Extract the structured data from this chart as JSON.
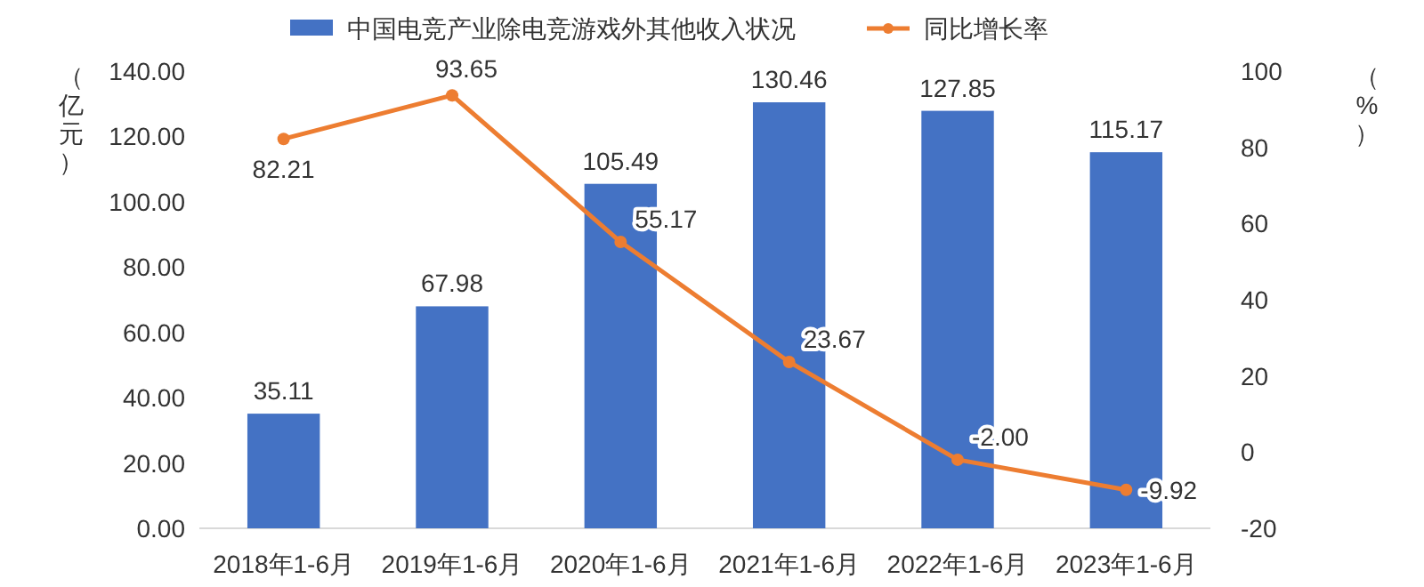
{
  "chart_data": {
    "type": "bar",
    "ylabel": "（亿元）",
    "y2label": "（%）",
    "categories": [
      "2018年1-6月",
      "2019年1-6月",
      "2020年1-6月",
      "2021年1-6月",
      "2022年1-6月",
      "2023年1-6月"
    ],
    "series": [
      {
        "name": "中国电竞产业除电竞游戏外其他收入状况",
        "color": "#4472c4",
        "values": [
          35.11,
          67.98,
          105.49,
          130.46,
          127.85,
          115.17
        ],
        "value_labels": [
          "35.11",
          "67.98",
          "105.49",
          "130.46",
          "127.85",
          "115.17"
        ]
      },
      {
        "name": "同比增长率",
        "type": "line",
        "axis": "y2",
        "color": "#ed7d31",
        "marker": "circle",
        "values": [
          82.21,
          93.65,
          55.17,
          23.67,
          -2.0,
          -9.92
        ],
        "value_labels": [
          "82.21",
          "93.65",
          "55.17",
          "23.67",
          "-2.00",
          "-9.92"
        ]
      }
    ],
    "ylim": [
      0,
      140
    ],
    "yticks": [
      {
        "value": 0,
        "label": "0.00"
      },
      {
        "value": 20,
        "label": "20.00"
      },
      {
        "value": 40,
        "label": "40.00"
      },
      {
        "value": 60,
        "label": "60.00"
      },
      {
        "value": 80,
        "label": "80.00"
      },
      {
        "value": 100,
        "label": "100.00"
      },
      {
        "value": 120,
        "label": "120.00"
      },
      {
        "value": 140,
        "label": "140.00"
      }
    ],
    "y2lim": [
      -20,
      100
    ],
    "y2ticks": [
      -20,
      0,
      20,
      40,
      60,
      80,
      100
    ],
    "grid": false,
    "legend": "top"
  }
}
